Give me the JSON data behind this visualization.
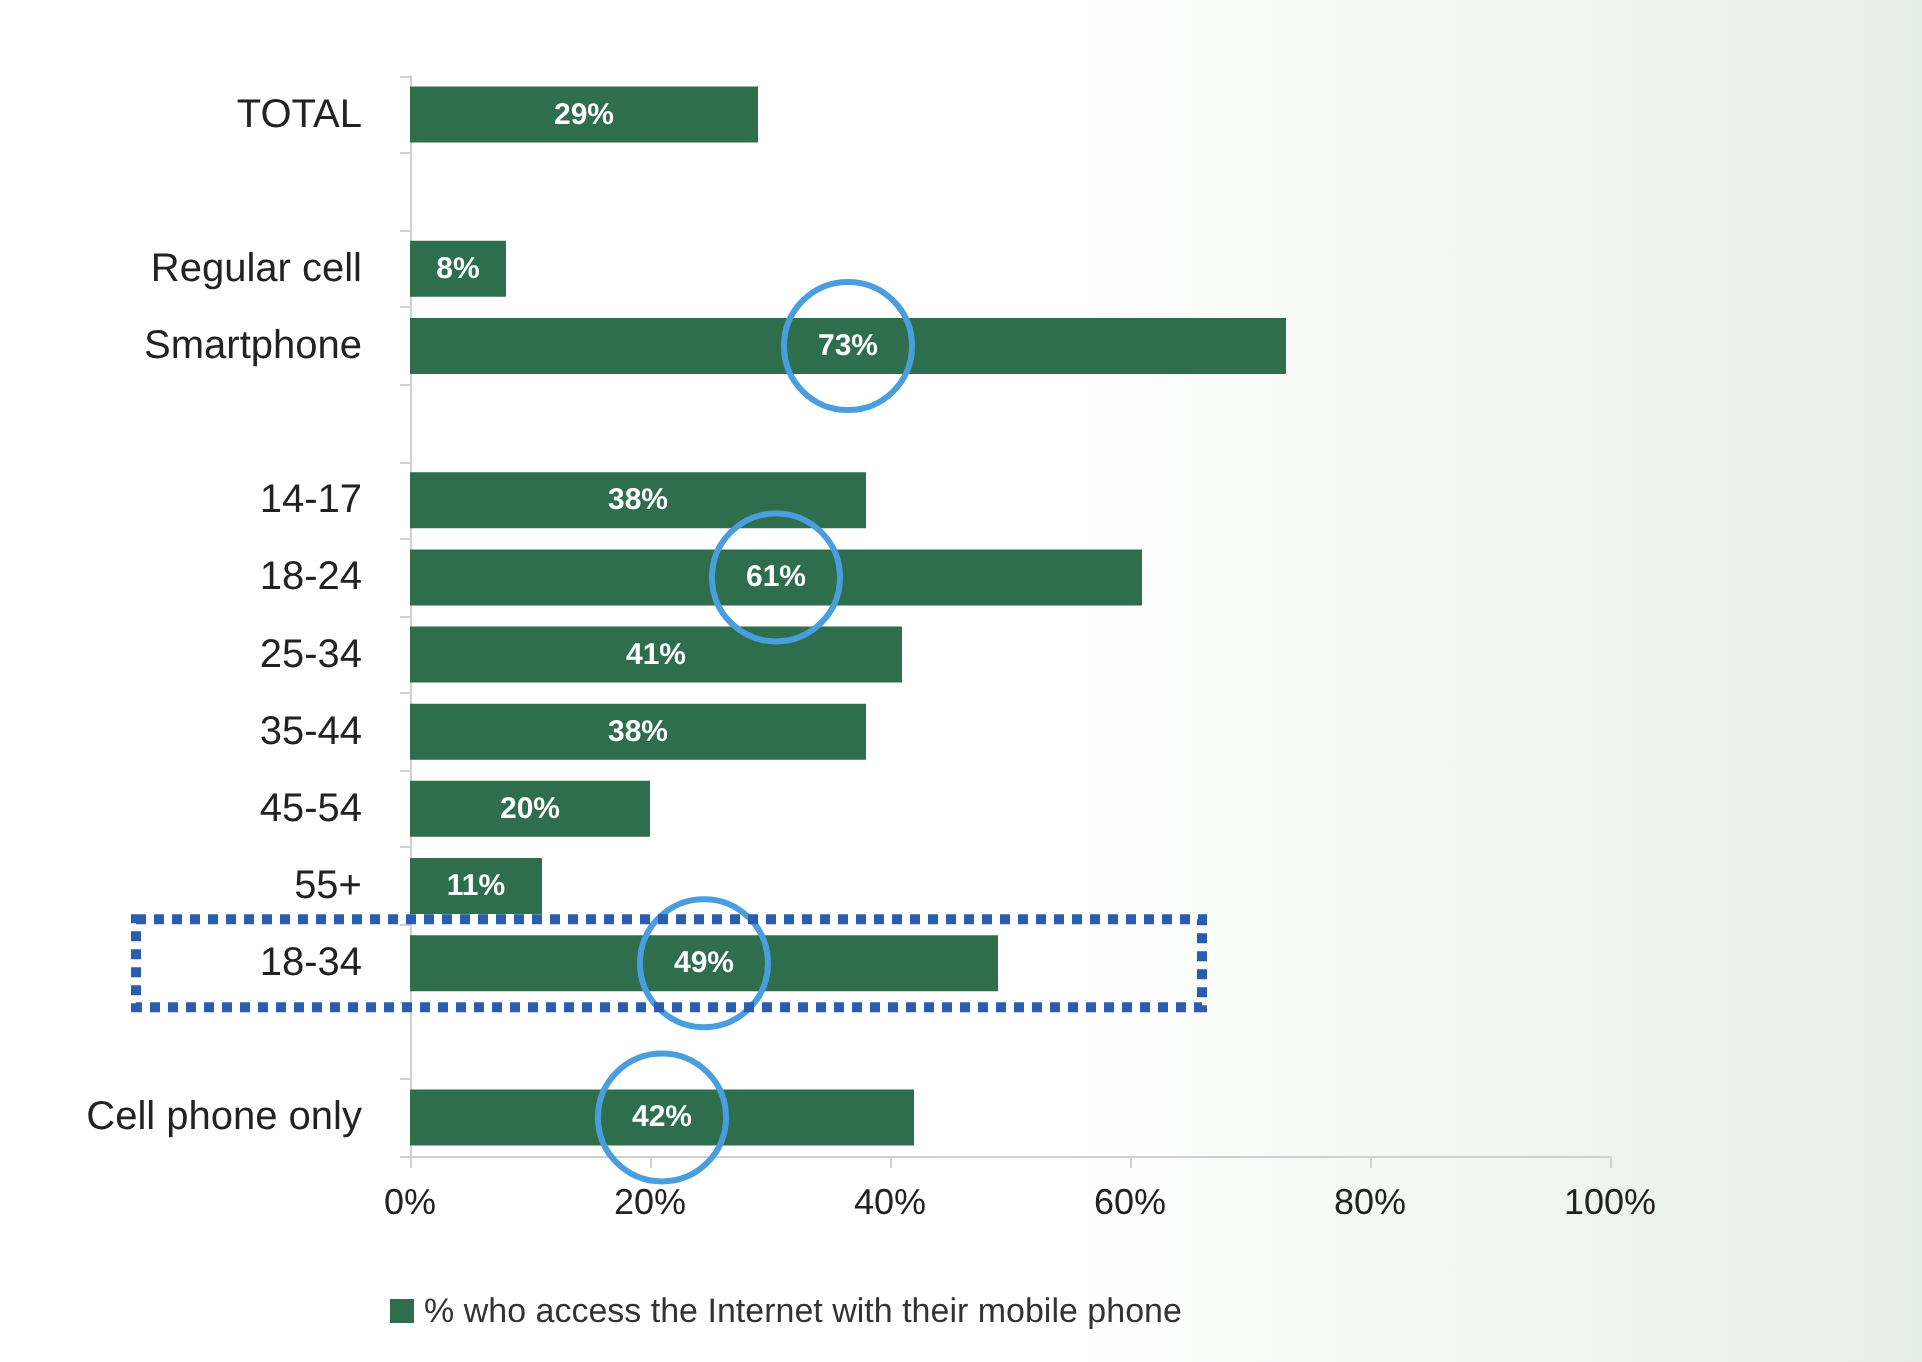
{
  "chart_data": {
    "type": "bar",
    "orientation": "horizontal",
    "categories": [
      "TOTAL",
      null,
      "Regular cell",
      "Smartphone",
      null,
      "14-17",
      "18-24",
      "25-34",
      "35-44",
      "45-54",
      "55+",
      "18-34",
      null,
      "Cell phone only"
    ],
    "series": [
      {
        "name": "% who access the Internet with their mobile phone",
        "color": "#2e6e4c",
        "values": [
          29,
          null,
          8,
          73,
          null,
          38,
          61,
          41,
          38,
          20,
          11,
          49,
          null,
          42
        ],
        "value_labels": [
          "29%",
          null,
          "8%",
          "73%",
          null,
          "38%",
          "61%",
          "41%",
          "38%",
          "20%",
          "11%",
          "49%",
          null,
          "42%"
        ]
      }
    ],
    "xlim": [
      0,
      100
    ],
    "xticks": [
      {
        "value": 0,
        "label": "0%"
      },
      {
        "value": 20,
        "label": "20%"
      },
      {
        "value": 40,
        "label": "40%"
      },
      {
        "value": 60,
        "label": "60%"
      },
      {
        "value": 80,
        "label": "80%"
      },
      {
        "value": 100,
        "label": "100%"
      }
    ],
    "grid": false,
    "legend": "bottom"
  }
}
